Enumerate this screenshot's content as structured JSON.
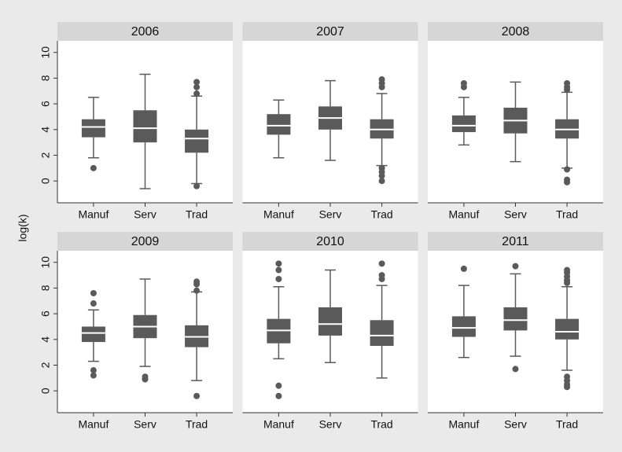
{
  "chart_data": [
    {
      "type": "box",
      "title": "2006",
      "ylabel": "log(k)",
      "categories": [
        "Manuf",
        "Serv",
        "Trad"
      ],
      "color": "#5a5a5a",
      "ylim": [
        -1.7,
        10.9
      ],
      "yticks": [
        0,
        2,
        4,
        6,
        8,
        10
      ],
      "boxes": [
        {
          "whislo": 1.8,
          "q1": 3.4,
          "med": 4.2,
          "q3": 4.8,
          "whishi": 6.5,
          "fliers": [
            1.0
          ]
        },
        {
          "whislo": -0.6,
          "q1": 3.0,
          "med": 4.1,
          "q3": 5.5,
          "whishi": 8.3,
          "fliers": []
        },
        {
          "whislo": -0.2,
          "q1": 2.2,
          "med": 3.3,
          "q3": 4.0,
          "whishi": 6.6,
          "fliers": [
            7.7,
            7.3,
            6.8,
            -0.4
          ]
        }
      ]
    },
    {
      "type": "box",
      "title": "2007",
      "categories": [
        "Manuf",
        "Serv",
        "Trad"
      ],
      "color": "#5a5a5a",
      "ylim": [
        -1.7,
        10.9
      ],
      "yticks": [
        0,
        2,
        4,
        6,
        8,
        10
      ],
      "boxes": [
        {
          "whislo": 1.8,
          "q1": 3.6,
          "med": 4.3,
          "q3": 5.2,
          "whishi": 6.3,
          "fliers": []
        },
        {
          "whislo": 1.6,
          "q1": 4.0,
          "med": 4.9,
          "q3": 5.8,
          "whishi": 7.8,
          "fliers": []
        },
        {
          "whislo": 1.2,
          "q1": 3.3,
          "med": 4.0,
          "q3": 4.8,
          "whishi": 6.8,
          "fliers": [
            7.9,
            7.6,
            7.3,
            1.0,
            0.7,
            0.4,
            0.0
          ]
        }
      ]
    },
    {
      "type": "box",
      "title": "2008",
      "categories": [
        "Manuf",
        "Serv",
        "Trad"
      ],
      "color": "#5a5a5a",
      "ylim": [
        -1.7,
        10.9
      ],
      "yticks": [
        0,
        2,
        4,
        6,
        8,
        10
      ],
      "boxes": [
        {
          "whislo": 2.8,
          "q1": 3.8,
          "med": 4.3,
          "q3": 5.1,
          "whishi": 6.5,
          "fliers": [
            7.6,
            7.3
          ]
        },
        {
          "whislo": 1.5,
          "q1": 3.7,
          "med": 4.7,
          "q3": 5.7,
          "whishi": 7.7,
          "fliers": []
        },
        {
          "whislo": 1.0,
          "q1": 3.3,
          "med": 4.0,
          "q3": 4.8,
          "whishi": 6.9,
          "fliers": [
            7.6,
            7.3,
            7.1,
            0.9,
            0.1,
            -0.1
          ]
        }
      ]
    },
    {
      "type": "box",
      "title": "2009",
      "categories": [
        "Manuf",
        "Serv",
        "Trad"
      ],
      "color": "#5a5a5a",
      "ylim": [
        -1.7,
        10.9
      ],
      "yticks": [
        0,
        2,
        4,
        6,
        8,
        10
      ],
      "boxes": [
        {
          "whislo": 2.3,
          "q1": 3.8,
          "med": 4.5,
          "q3": 5.0,
          "whishi": 6.3,
          "fliers": [
            7.6,
            6.8,
            1.6,
            1.2
          ]
        },
        {
          "whislo": 1.9,
          "q1": 4.1,
          "med": 5.0,
          "q3": 5.9,
          "whishi": 8.7,
          "fliers": [
            1.1,
            0.9
          ]
        },
        {
          "whislo": 0.8,
          "q1": 3.4,
          "med": 4.2,
          "q3": 5.1,
          "whishi": 7.7,
          "fliers": [
            8.5,
            8.3,
            7.8,
            -0.4
          ]
        }
      ]
    },
    {
      "type": "box",
      "title": "2010",
      "categories": [
        "Manuf",
        "Serv",
        "Trad"
      ],
      "color": "#5a5a5a",
      "ylim": [
        -1.7,
        10.9
      ],
      "yticks": [
        0,
        2,
        4,
        6,
        8,
        10
      ],
      "boxes": [
        {
          "whislo": 2.5,
          "q1": 3.7,
          "med": 4.7,
          "q3": 5.6,
          "whishi": 8.1,
          "fliers": [
            9.9,
            9.4,
            8.7,
            0.4,
            -0.4
          ]
        },
        {
          "whislo": 2.2,
          "q1": 4.3,
          "med": 5.2,
          "q3": 6.5,
          "whishi": 9.4,
          "fliers": []
        },
        {
          "whislo": 1.0,
          "q1": 3.5,
          "med": 4.3,
          "q3": 5.5,
          "whishi": 8.2,
          "fliers": [
            9.9,
            9.0,
            8.7
          ]
        }
      ]
    },
    {
      "type": "box",
      "title": "2011",
      "categories": [
        "Manuf",
        "Serv",
        "Trad"
      ],
      "color": "#5a5a5a",
      "ylim": [
        -1.7,
        10.9
      ],
      "yticks": [
        0,
        2,
        4,
        6,
        8,
        10
      ],
      "boxes": [
        {
          "whislo": 2.6,
          "q1": 4.2,
          "med": 4.9,
          "q3": 5.8,
          "whishi": 8.2,
          "fliers": [
            9.5
          ]
        },
        {
          "whislo": 2.7,
          "q1": 4.7,
          "med": 5.5,
          "q3": 6.5,
          "whishi": 9.1,
          "fliers": [
            9.7,
            1.7
          ]
        },
        {
          "whislo": 1.6,
          "q1": 4.0,
          "med": 4.6,
          "q3": 5.6,
          "whishi": 8.1,
          "fliers": [
            9.4,
            9.2,
            8.9,
            8.6,
            8.4,
            1.1,
            0.8,
            0.5,
            0.3
          ]
        }
      ]
    }
  ]
}
